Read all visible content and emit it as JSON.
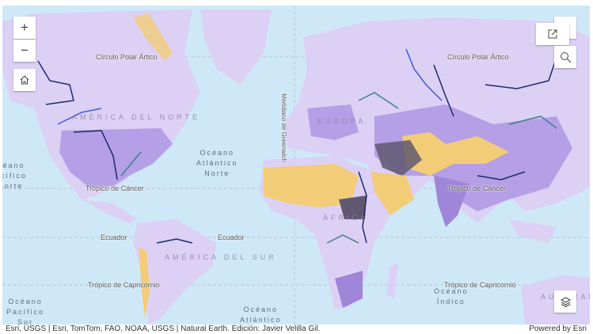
{
  "map": {
    "colors": {
      "ocean": "#cfe8f7",
      "land": "#dcd0f5",
      "medium": "#b59fe6",
      "high": "#9f86d8",
      "arid": "#f3cc78",
      "very_high": "#5f5870",
      "river_dark": "#1c2a6b",
      "river_blue": "#3b5bd6",
      "river_teal": "#3f7f8f"
    },
    "graticule_labels": {
      "arctic_left": "Círculo Polar Ártico",
      "arctic_right": "Círculo Polar Ártico",
      "cancer_left": "Trópico de Cáncer",
      "cancer_right": "Trópico de Cáncer",
      "equator_left": "Ecuador",
      "equator_right": "Ecuador",
      "capricorn_left": "Trópico de Capricornio",
      "capricorn_right": "Trópico de Capricornio",
      "greenwich": "Meridiano de Greenwich"
    },
    "oceans": {
      "north_atlantic": "Océano\nAtlántico\nNorte",
      "south_atlantic": "Océano\nAtlántico",
      "south_pacific": "Océano\nPacífico\nSur",
      "north_pacific": "éano\ncífico\norte",
      "indian": "Océano\nÍndico"
    },
    "continents": {
      "north_america": "AMÉRICA\nDEL\nNORTE",
      "south_america": "AMÉRICA\nDEL SUR",
      "europe": "EUROPA",
      "africa": "ÁFRICA",
      "australia": "AUSTRALIA"
    }
  },
  "controls": {
    "zoom_in": "+",
    "zoom_out": "−",
    "icons": {
      "home": "home-icon",
      "external": "external-link-icon",
      "search": "search-icon",
      "layers": "layers-icon",
      "more": "more-vertical-icon"
    }
  },
  "attribution": {
    "sources": "Esri, USGS | Esri, TomTom, FAO, NOAA, USGS | Natural Earth. Edición: Javier Velilla Gil.",
    "powered_by": "Powered by Esri"
  }
}
